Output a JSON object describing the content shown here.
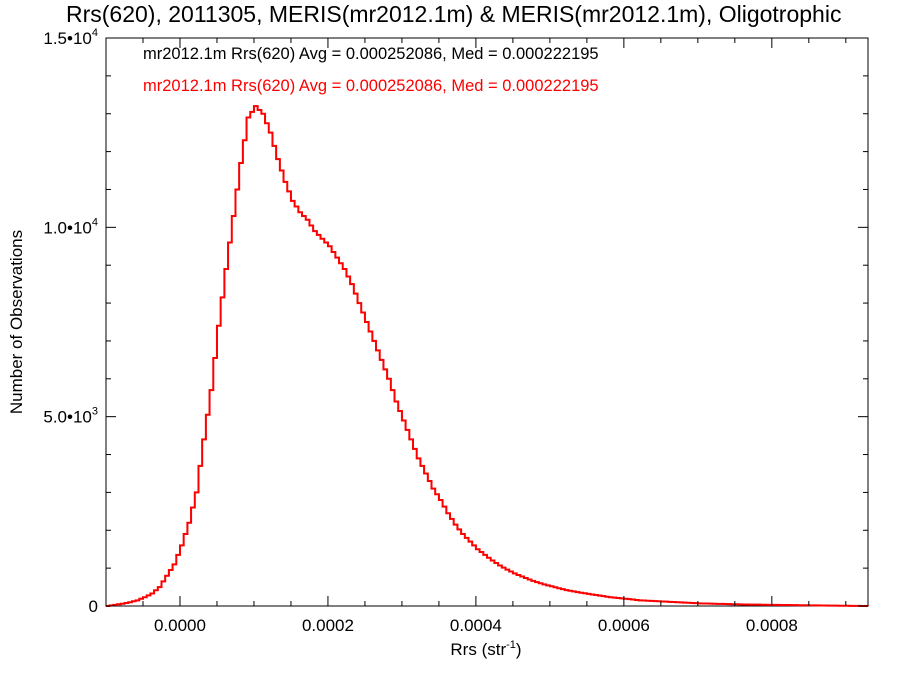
{
  "chart_data": {
    "type": "histogram",
    "title": "Rrs(620), 2011305, MERIS(mr2012.1m) & MERIS(mr2012.1m), Oligotrophic",
    "xlabel": "Rrs (str",
    "xlabel_sup": "-1",
    "xlabel_end": ")",
    "ylabel": "Number of Observations",
    "xlim": [
      -0.0001,
      0.00093
    ],
    "ylim": [
      0,
      15000
    ],
    "x_ticks": [
      {
        "value": 0.0,
        "label": "0.0000"
      },
      {
        "value": 0.0002,
        "label": "0.0002"
      },
      {
        "value": 0.0004,
        "label": "0.0004"
      },
      {
        "value": 0.0006,
        "label": "0.0006"
      },
      {
        "value": 0.0008,
        "label": "0.0008"
      }
    ],
    "y_ticks": [
      {
        "value": 0,
        "base": "0",
        "sup": ""
      },
      {
        "value": 5000,
        "base": "5.0•10",
        "sup": "3"
      },
      {
        "value": 10000,
        "base": "1.0•10",
        "sup": "4"
      },
      {
        "value": 15000,
        "base": "1.5•10",
        "sup": "4"
      }
    ],
    "grid": false,
    "legend_position": "top-left",
    "legend": [
      {
        "text": "mr2012.1m Rrs(620) Avg = 0.000252086, Med = 0.000222195",
        "color": "#000000"
      },
      {
        "text": "mr2012.1m Rrs(620) Avg = 0.000252086, Med = 0.000222195",
        "color": "#ff0000"
      }
    ],
    "series": [
      {
        "color": "#000000",
        "bin_width": 5e-06,
        "x": [
          -0.0001,
          -9e-05,
          -8e-05,
          -7e-05,
          -6e-05,
          -5e-05,
          -4e-05,
          -3e-05,
          -2e-05,
          -1e-05,
          0.0,
          1e-05,
          2e-05,
          3e-05,
          4e-05,
          5e-05,
          6e-05,
          7e-05,
          8e-05,
          9e-05,
          0.0001,
          0.00011,
          0.00012,
          0.00013,
          0.00014,
          0.00015,
          0.00016,
          0.00017,
          0.00018,
          0.00019,
          0.0002,
          0.00021,
          0.00022,
          0.00023,
          0.00024,
          0.00025,
          0.00026,
          0.00027,
          0.00028,
          0.00029,
          0.0003,
          0.00031,
          0.00032,
          0.00033,
          0.00034,
          0.00035,
          0.00036,
          0.00037,
          0.00038,
          0.00039,
          0.0004,
          0.00041,
          0.00042,
          0.00043,
          0.00044,
          0.00045,
          0.00046,
          0.00047,
          0.00048,
          0.00049,
          0.0005,
          0.00052,
          0.00054,
          0.00056,
          0.00058,
          0.0006,
          0.00062,
          0.00064,
          0.00066,
          0.00068,
          0.0007,
          0.00072,
          0.00074,
          0.00076,
          0.00078,
          0.0008,
          0.00082,
          0.00084,
          0.00086,
          0.00088,
          0.0009,
          0.00093
        ],
        "y": [
          0,
          30,
          60,
          100,
          150,
          230,
          330,
          500,
          800,
          1100,
          1600,
          2200,
          3000,
          4400,
          5700,
          7400,
          8900,
          10300,
          11700,
          12900,
          13200,
          13000,
          12500,
          11800,
          11200,
          10700,
          10400,
          10200,
          9900,
          9700,
          9500,
          9200,
          8900,
          8500,
          8000,
          7500,
          7000,
          6500,
          6000,
          5400,
          4900,
          4400,
          3900,
          3500,
          3100,
          2800,
          2450,
          2150,
          1900,
          1700,
          1500,
          1350,
          1200,
          1070,
          960,
          860,
          780,
          700,
          630,
          570,
          520,
          420,
          350,
          290,
          230,
          190,
          150,
          130,
          110,
          90,
          70,
          60,
          50,
          40,
          35,
          30,
          25,
          20,
          15,
          10,
          5,
          0
        ]
      },
      {
        "color": "#ff0000",
        "bin_width": 5e-06,
        "x": [
          -0.0001,
          -9e-05,
          -8e-05,
          -7e-05,
          -6e-05,
          -5e-05,
          -4e-05,
          -3e-05,
          -2e-05,
          -1e-05,
          0.0,
          1e-05,
          2e-05,
          3e-05,
          4e-05,
          5e-05,
          6e-05,
          7e-05,
          8e-05,
          9e-05,
          0.0001,
          0.00011,
          0.00012,
          0.00013,
          0.00014,
          0.00015,
          0.00016,
          0.00017,
          0.00018,
          0.00019,
          0.0002,
          0.00021,
          0.00022,
          0.00023,
          0.00024,
          0.00025,
          0.00026,
          0.00027,
          0.00028,
          0.00029,
          0.0003,
          0.00031,
          0.00032,
          0.00033,
          0.00034,
          0.00035,
          0.00036,
          0.00037,
          0.00038,
          0.00039,
          0.0004,
          0.00041,
          0.00042,
          0.00043,
          0.00044,
          0.00045,
          0.00046,
          0.00047,
          0.00048,
          0.00049,
          0.0005,
          0.00052,
          0.00054,
          0.00056,
          0.00058,
          0.0006,
          0.00062,
          0.00064,
          0.00066,
          0.00068,
          0.0007,
          0.00072,
          0.00074,
          0.00076,
          0.00078,
          0.0008,
          0.00082,
          0.00084,
          0.00086,
          0.00088,
          0.0009,
          0.00093
        ],
        "y": [
          0,
          30,
          60,
          100,
          150,
          230,
          330,
          500,
          800,
          1100,
          1600,
          2200,
          3000,
          4400,
          5700,
          7400,
          8900,
          10300,
          11700,
          12900,
          13200,
          13000,
          12500,
          11800,
          11200,
          10700,
          10400,
          10200,
          9900,
          9700,
          9500,
          9200,
          8900,
          8500,
          8000,
          7500,
          7000,
          6500,
          6000,
          5400,
          4900,
          4400,
          3900,
          3500,
          3100,
          2800,
          2450,
          2150,
          1900,
          1700,
          1500,
          1350,
          1200,
          1070,
          960,
          860,
          780,
          700,
          630,
          570,
          520,
          420,
          350,
          290,
          230,
          190,
          150,
          130,
          110,
          90,
          70,
          60,
          50,
          40,
          35,
          30,
          25,
          20,
          15,
          10,
          5,
          0
        ]
      }
    ]
  }
}
